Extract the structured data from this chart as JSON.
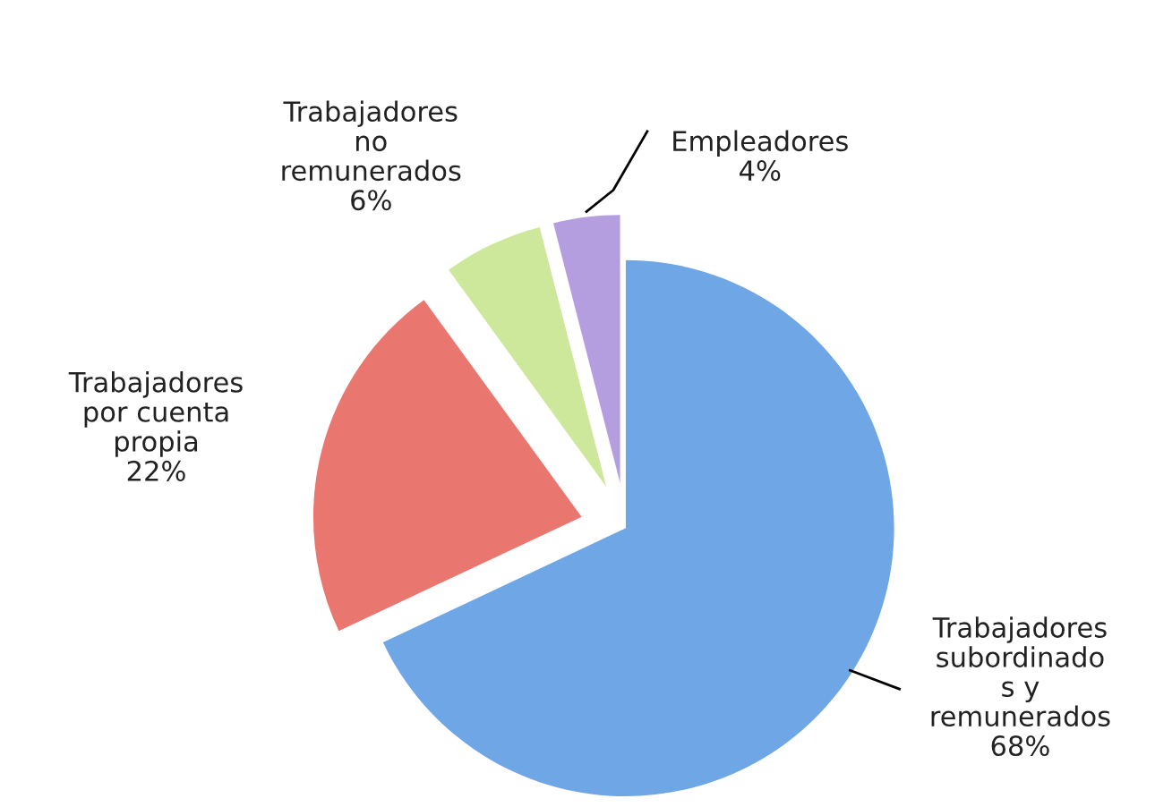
{
  "chart_data": {
    "type": "pie",
    "categories": [
      "Trabajadores\nsubordinado\ns y\nremunerados",
      "Trabajadores\npor cuenta\npropia",
      "Trabajadores\nno\nremunerados",
      "Empleadores"
    ],
    "values": [
      68,
      22,
      6,
      4
    ],
    "value_labels": [
      "68%",
      "22%",
      "6%",
      "4%"
    ],
    "colors": [
      "#6fa6e6",
      "#e9776f",
      "#cde89a",
      "#b49ee0"
    ]
  }
}
